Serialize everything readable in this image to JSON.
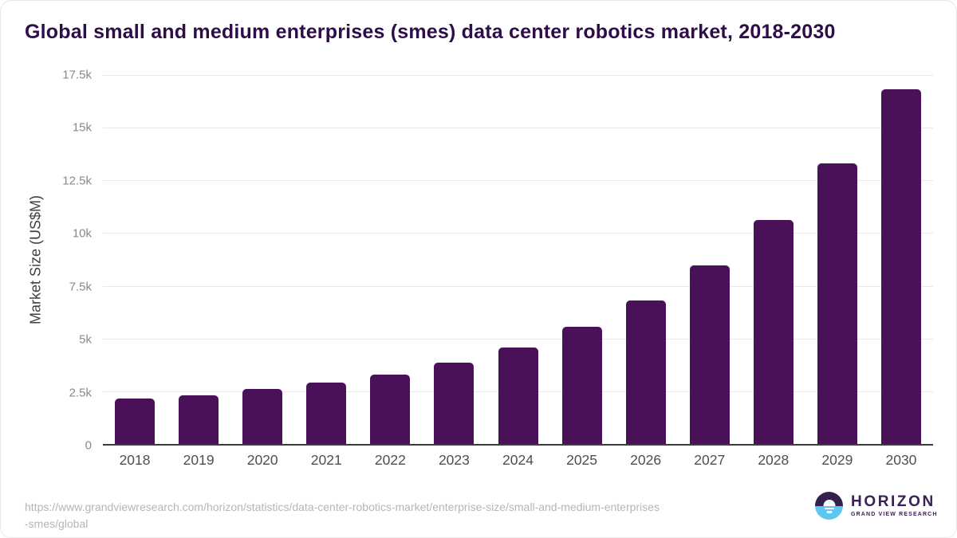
{
  "title": "Global small and medium enterprises (smes) data center robotics market, 2018-2030",
  "chart_data": {
    "type": "bar",
    "title": "Global small and medium enterprises (smes) data center robotics market, 2018-2030",
    "categories": [
      "2018",
      "2019",
      "2020",
      "2021",
      "2022",
      "2023",
      "2024",
      "2025",
      "2026",
      "2027",
      "2028",
      "2029",
      "2030"
    ],
    "values": [
      2150,
      2310,
      2590,
      2900,
      3300,
      3850,
      4580,
      5560,
      6800,
      8460,
      10620,
      13320,
      16830
    ],
    "xlabel": "",
    "ylabel": "Market Size (US$M)",
    "ylim": [
      0,
      17500
    ],
    "yticks": [
      {
        "value": 0,
        "label": "0"
      },
      {
        "value": 2500,
        "label": "2.5k"
      },
      {
        "value": 5000,
        "label": "5k"
      },
      {
        "value": 7500,
        "label": "7.5k"
      },
      {
        "value": 10000,
        "label": "10k"
      },
      {
        "value": 12500,
        "label": "12.5k"
      },
      {
        "value": 15000,
        "label": "15k"
      },
      {
        "value": 17500,
        "label": "17.5k"
      }
    ],
    "grid": true,
    "legend": false,
    "bar_color": "#4a1158"
  },
  "colors": {
    "bar": "#4a1158",
    "title_text": "#2e0d49",
    "gridline": "#e9e9e9",
    "axis_line": "#3c3c3c",
    "x_tick_text": "#4f4f4f",
    "y_tick_text": "#8a8a8a",
    "url_text": "#b5b5b5",
    "logo_purple": "#33204c",
    "logo_blue": "#5ec7ef"
  },
  "footer": {
    "url_line1": "https://www.grandviewresearch.com/horizon/statistics/data-center-robotics-market/enterprise-size/small-and-medium-enterprises",
    "url_line2": "-smes/global",
    "logo": {
      "name": "HORIZON",
      "subtitle": "GRAND VIEW RESEARCH"
    }
  }
}
